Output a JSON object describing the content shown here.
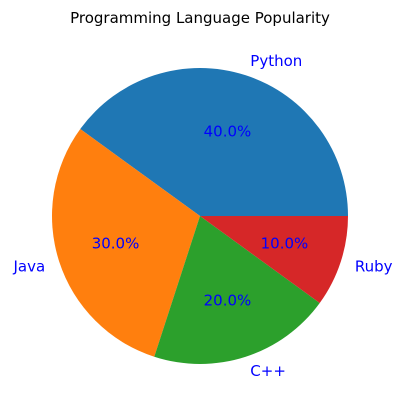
{
  "chart_data": {
    "type": "pie",
    "title": "Programming Language Popularity",
    "categories": [
      "Python",
      "Java",
      "C++",
      "Ruby"
    ],
    "values": [
      40,
      30,
      20,
      10
    ],
    "percent_labels": [
      "40.0%",
      "30.0%",
      "20.0%",
      "10.0%"
    ],
    "colors": [
      "#1f77b4",
      "#ff7f0e",
      "#2ca02c",
      "#d62728"
    ],
    "label_color": "#0000ff",
    "start_angle": 0,
    "direction": "counterclockwise",
    "legend": "none"
  }
}
